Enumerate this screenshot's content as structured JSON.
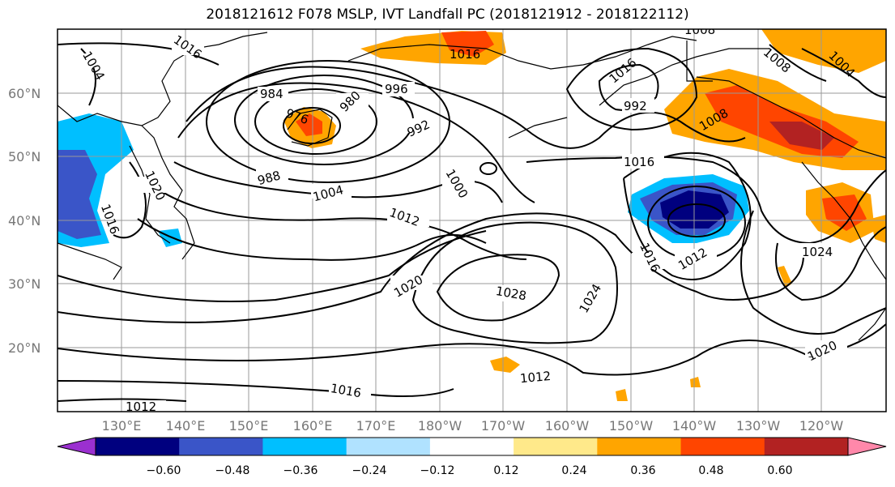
{
  "title": "2018121612 F078 MSLP, IVT Landfall PC (2018121912 - 2018122112)",
  "lat_labels": [
    "60°N",
    "50°N",
    "40°N",
    "30°N",
    "20°N"
  ],
  "lon_labels": [
    "130°E",
    "140°E",
    "150°E",
    "160°E",
    "170°E",
    "180°W",
    "170°W",
    "160°W",
    "150°W",
    "140°W",
    "130°W",
    "120°W"
  ],
  "contour_labels": [
    "1004",
    "1016",
    "1016",
    "984",
    "980",
    "976",
    "996",
    "992",
    "992",
    "988",
    "1004",
    "1000",
    "1008",
    "1016",
    "1020",
    "1016",
    "1012",
    "1012",
    "1020",
    "1028",
    "1024",
    "1016",
    "1012",
    "1024",
    "1020",
    "1016",
    "1012",
    "1008",
    "1004",
    "1008",
    "1016"
  ],
  "colorbar": {
    "colors": [
      "#9b30d0",
      "#00007f",
      "#3a55c8",
      "#00bfff",
      "#b0e2ff",
      "#ffffff",
      "#ffe98a",
      "#ffa500",
      "#ff4500",
      "#b22222",
      "#ff88aa"
    ],
    "tick_labels": [
      "−0.60",
      "−0.48",
      "−0.36",
      "−0.24",
      "−0.12",
      "0.12",
      "0.24",
      "0.36",
      "0.48",
      "0.60"
    ]
  }
}
